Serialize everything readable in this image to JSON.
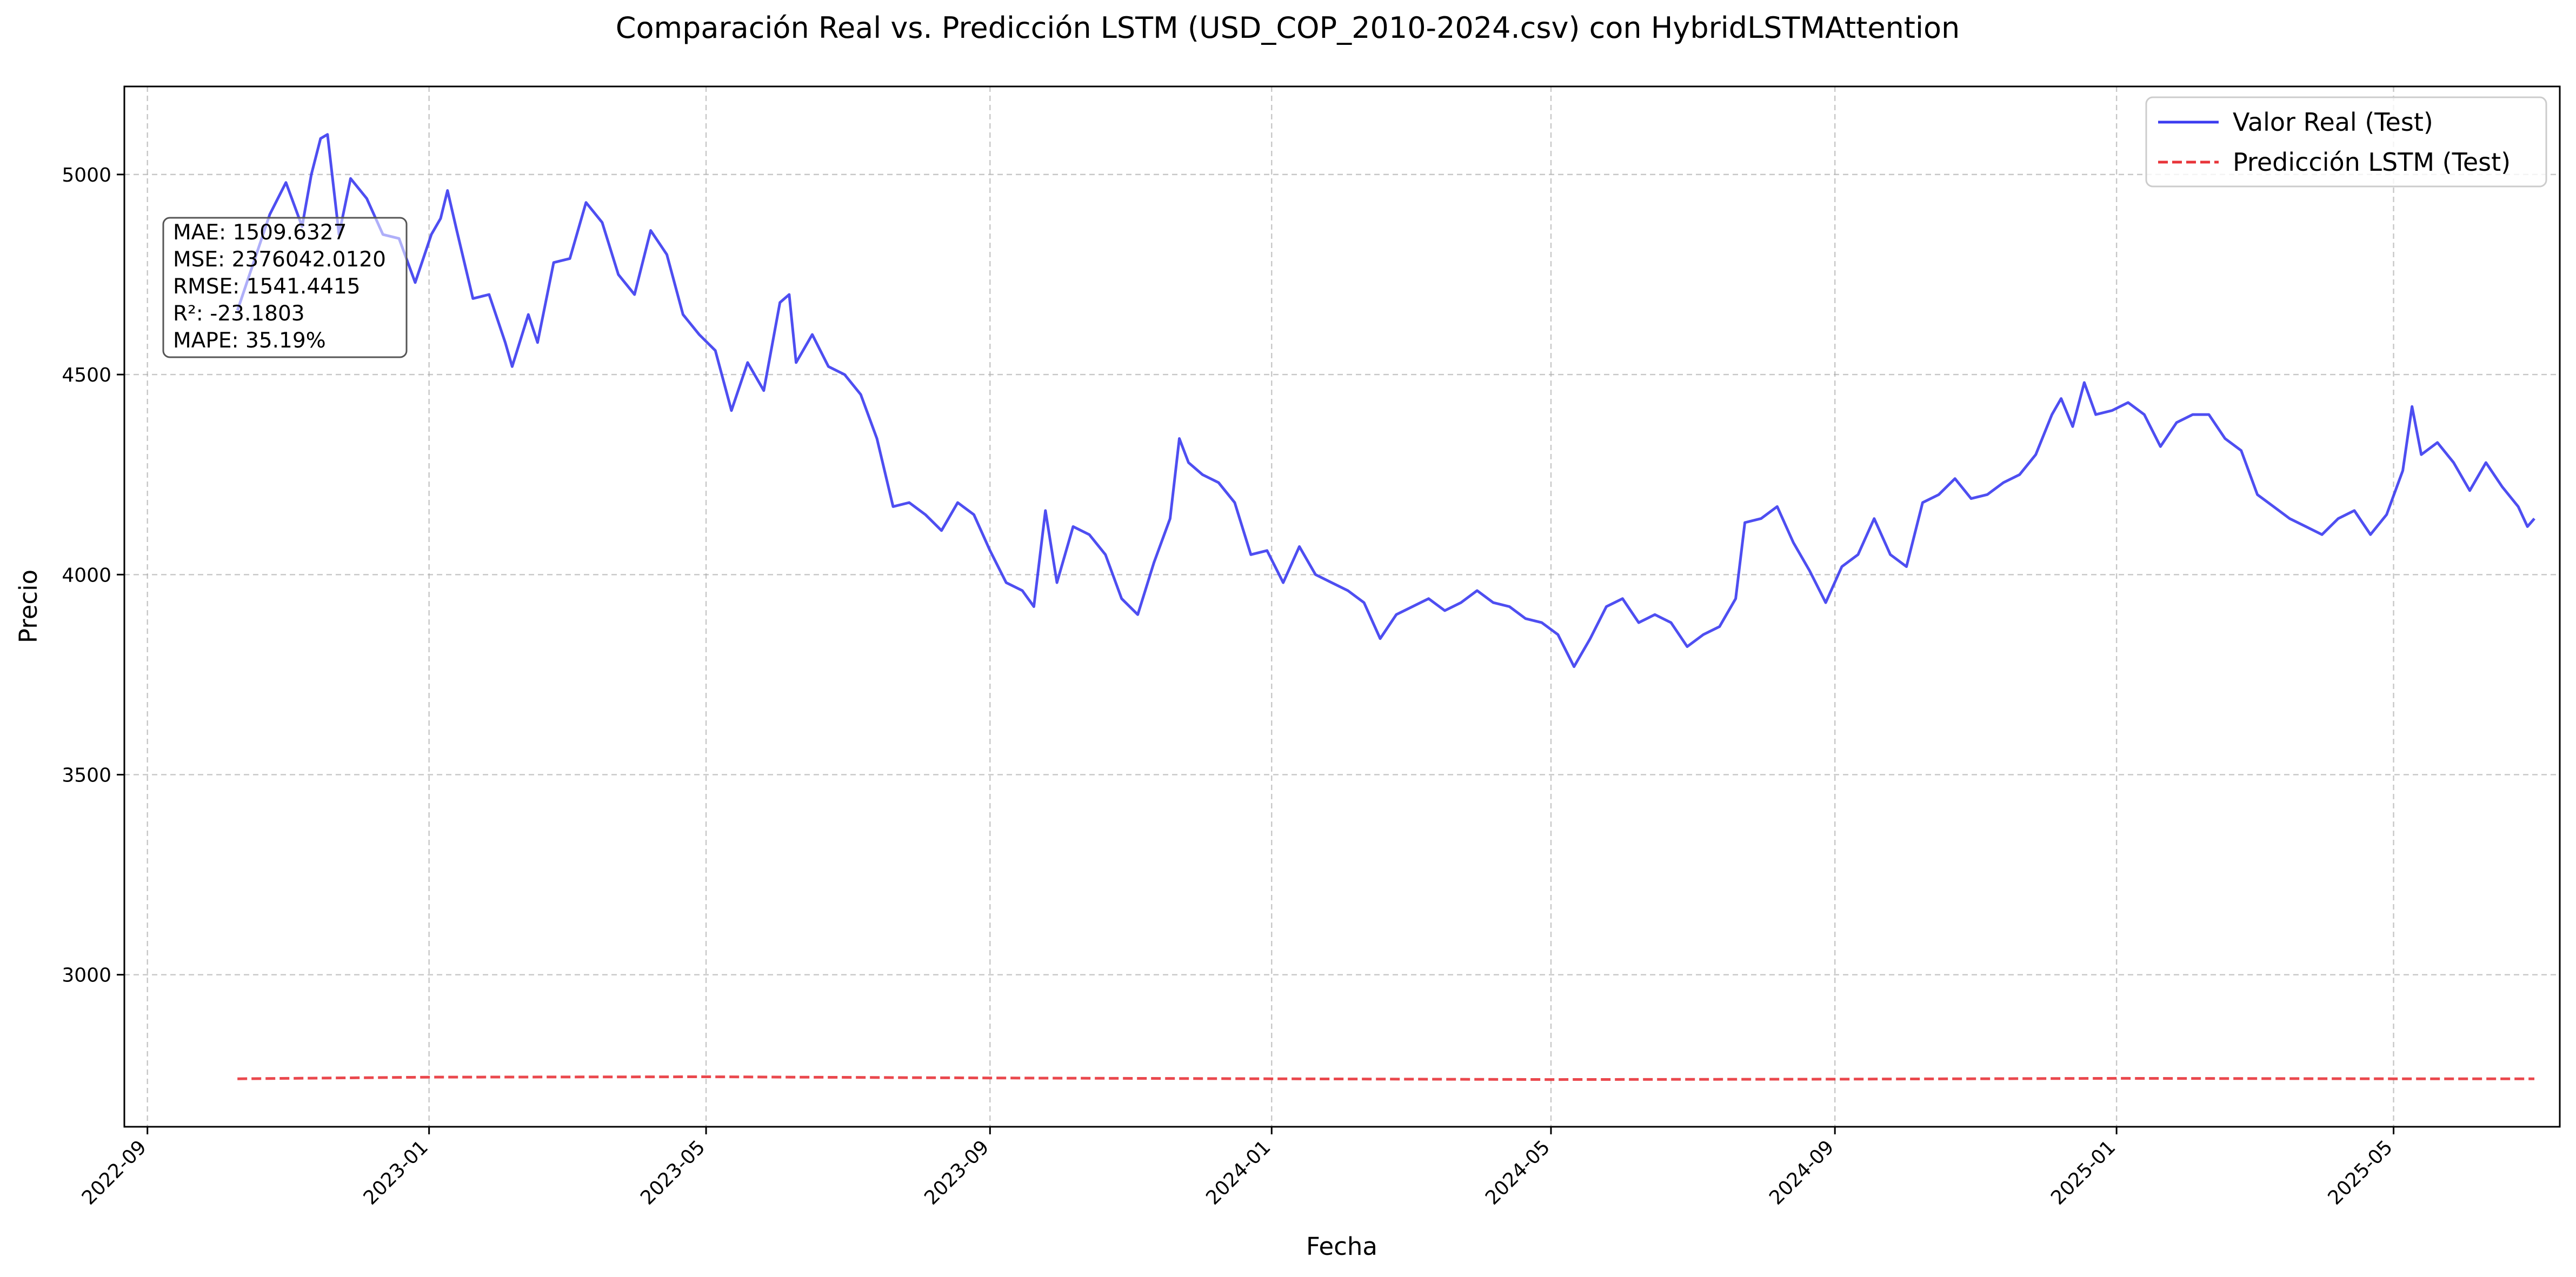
{
  "chart_data": {
    "type": "line",
    "title": "Comparación Real vs. Predicción LSTM (USD_COP_2010-2024.csv) con HybridLSTMAttention",
    "xlabel": "Fecha",
    "ylabel": "Precio",
    "x_tick_labels": [
      "2022-09",
      "2023-01",
      "2023-05",
      "2023-09",
      "2024-01",
      "2024-05",
      "2024-09",
      "2025-01",
      "2025-05"
    ],
    "y_tick_labels": [
      "3000",
      "3500",
      "4000",
      "4500",
      "5000"
    ],
    "y_ticks": [
      3000,
      3500,
      4000,
      4500,
      5000
    ],
    "ylim": [
      2620,
      5220
    ],
    "xlim": [
      "2022-08-22",
      "2025-07-12"
    ],
    "grid": true,
    "legend_position": "top-right",
    "series": [
      {
        "name": "Valor Real (Test)",
        "color": "#3b3bf0",
        "style": "solid",
        "points": [
          [
            "2022-10-10",
            4660
          ],
          [
            "2022-10-17",
            4780
          ],
          [
            "2022-10-24",
            4900
          ],
          [
            "2022-10-31",
            4980
          ],
          [
            "2022-11-07",
            4870
          ],
          [
            "2022-11-11",
            5000
          ],
          [
            "2022-11-15",
            5090
          ],
          [
            "2022-11-18",
            5100
          ],
          [
            "2022-11-23",
            4850
          ],
          [
            "2022-11-28",
            4990
          ],
          [
            "2022-12-05",
            4940
          ],
          [
            "2022-12-12",
            4850
          ],
          [
            "2022-12-19",
            4840
          ],
          [
            "2022-12-26",
            4730
          ],
          [
            "2023-01-02",
            4850
          ],
          [
            "2023-01-06",
            4890
          ],
          [
            "2023-01-09",
            4960
          ],
          [
            "2023-01-13",
            4860
          ],
          [
            "2023-01-20",
            4690
          ],
          [
            "2023-01-27",
            4700
          ],
          [
            "2023-02-03",
            4580
          ],
          [
            "2023-02-06",
            4520
          ],
          [
            "2023-02-13",
            4650
          ],
          [
            "2023-02-17",
            4580
          ],
          [
            "2023-02-24",
            4780
          ],
          [
            "2023-03-03",
            4790
          ],
          [
            "2023-03-10",
            4930
          ],
          [
            "2023-03-17",
            4880
          ],
          [
            "2023-03-24",
            4750
          ],
          [
            "2023-03-31",
            4700
          ],
          [
            "2023-04-07",
            4860
          ],
          [
            "2023-04-14",
            4800
          ],
          [
            "2023-04-21",
            4650
          ],
          [
            "2023-04-28",
            4600
          ],
          [
            "2023-05-05",
            4560
          ],
          [
            "2023-05-12",
            4410
          ],
          [
            "2023-05-19",
            4530
          ],
          [
            "2023-05-26",
            4460
          ],
          [
            "2023-06-02",
            4680
          ],
          [
            "2023-06-06",
            4700
          ],
          [
            "2023-06-09",
            4530
          ],
          [
            "2023-06-16",
            4600
          ],
          [
            "2023-06-23",
            4520
          ],
          [
            "2023-06-30",
            4500
          ],
          [
            "2023-07-07",
            4450
          ],
          [
            "2023-07-14",
            4340
          ],
          [
            "2023-07-21",
            4170
          ],
          [
            "2023-07-28",
            4180
          ],
          [
            "2023-08-04",
            4150
          ],
          [
            "2023-08-11",
            4110
          ],
          [
            "2023-08-18",
            4180
          ],
          [
            "2023-08-25",
            4150
          ],
          [
            "2023-09-01",
            4060
          ],
          [
            "2023-09-08",
            3980
          ],
          [
            "2023-09-15",
            3960
          ],
          [
            "2023-09-20",
            3920
          ],
          [
            "2023-09-25",
            4160
          ],
          [
            "2023-09-30",
            3980
          ],
          [
            "2023-10-07",
            4120
          ],
          [
            "2023-10-14",
            4100
          ],
          [
            "2023-10-21",
            4050
          ],
          [
            "2023-10-28",
            3940
          ],
          [
            "2023-11-04",
            3900
          ],
          [
            "2023-11-11",
            4030
          ],
          [
            "2023-11-18",
            4140
          ],
          [
            "2023-11-22",
            4340
          ],
          [
            "2023-11-26",
            4280
          ],
          [
            "2023-12-02",
            4250
          ],
          [
            "2023-12-09",
            4230
          ],
          [
            "2023-12-16",
            4180
          ],
          [
            "2023-12-23",
            4050
          ],
          [
            "2023-12-30",
            4060
          ],
          [
            "2024-01-06",
            3980
          ],
          [
            "2024-01-13",
            4070
          ],
          [
            "2024-01-20",
            4000
          ],
          [
            "2024-01-27",
            3980
          ],
          [
            "2024-02-03",
            3960
          ],
          [
            "2024-02-10",
            3930
          ],
          [
            "2024-02-17",
            3840
          ],
          [
            "2024-02-24",
            3900
          ],
          [
            "2024-03-02",
            3920
          ],
          [
            "2024-03-09",
            3940
          ],
          [
            "2024-03-16",
            3910
          ],
          [
            "2024-03-23",
            3930
          ],
          [
            "2024-03-30",
            3960
          ],
          [
            "2024-04-06",
            3930
          ],
          [
            "2024-04-13",
            3920
          ],
          [
            "2024-04-20",
            3890
          ],
          [
            "2024-04-27",
            3880
          ],
          [
            "2024-05-04",
            3850
          ],
          [
            "2024-05-11",
            3770
          ],
          [
            "2024-05-18",
            3840
          ],
          [
            "2024-05-25",
            3920
          ],
          [
            "2024-06-01",
            3940
          ],
          [
            "2024-06-08",
            3880
          ],
          [
            "2024-06-15",
            3900
          ],
          [
            "2024-06-22",
            3880
          ],
          [
            "2024-06-29",
            3820
          ],
          [
            "2024-07-06",
            3850
          ],
          [
            "2024-07-13",
            3870
          ],
          [
            "2024-07-20",
            3940
          ],
          [
            "2024-07-24",
            4130
          ],
          [
            "2024-07-31",
            4140
          ],
          [
            "2024-08-07",
            4170
          ],
          [
            "2024-08-14",
            4080
          ],
          [
            "2024-08-21",
            4010
          ],
          [
            "2024-08-28",
            3930
          ],
          [
            "2024-09-04",
            4020
          ],
          [
            "2024-09-11",
            4050
          ],
          [
            "2024-09-18",
            4140
          ],
          [
            "2024-09-25",
            4050
          ],
          [
            "2024-10-02",
            4020
          ],
          [
            "2024-10-09",
            4180
          ],
          [
            "2024-10-16",
            4200
          ],
          [
            "2024-10-23",
            4240
          ],
          [
            "2024-10-30",
            4190
          ],
          [
            "2024-11-06",
            4200
          ],
          [
            "2024-11-13",
            4230
          ],
          [
            "2024-11-20",
            4250
          ],
          [
            "2024-11-27",
            4300
          ],
          [
            "2024-12-04",
            4400
          ],
          [
            "2024-12-08",
            4440
          ],
          [
            "2024-12-13",
            4370
          ],
          [
            "2024-12-18",
            4480
          ],
          [
            "2024-12-23",
            4400
          ],
          [
            "2024-12-30",
            4410
          ],
          [
            "2025-01-06",
            4430
          ],
          [
            "2025-01-13",
            4400
          ],
          [
            "2025-01-20",
            4320
          ],
          [
            "2025-01-27",
            4380
          ],
          [
            "2025-02-03",
            4400
          ],
          [
            "2025-02-10",
            4400
          ],
          [
            "2025-02-17",
            4340
          ],
          [
            "2025-02-24",
            4310
          ],
          [
            "2025-03-03",
            4200
          ],
          [
            "2025-03-10",
            4170
          ],
          [
            "2025-03-17",
            4140
          ],
          [
            "2025-03-24",
            4120
          ],
          [
            "2025-03-31",
            4100
          ],
          [
            "2025-04-07",
            4140
          ],
          [
            "2025-04-14",
            4160
          ],
          [
            "2025-04-21",
            4100
          ],
          [
            "2025-04-28",
            4150
          ],
          [
            "2025-05-05",
            4260
          ],
          [
            "2025-05-09",
            4420
          ],
          [
            "2025-05-13",
            4300
          ],
          [
            "2025-05-20",
            4330
          ],
          [
            "2025-05-27",
            4280
          ],
          [
            "2025-06-03",
            4210
          ],
          [
            "2025-06-10",
            4280
          ],
          [
            "2025-06-17",
            4220
          ],
          [
            "2025-06-24",
            4170
          ],
          [
            "2025-06-28",
            4120
          ],
          [
            "2025-07-01",
            4140
          ]
        ]
      },
      {
        "name": "Predicción LSTM (Test)",
        "color": "#e8343a",
        "style": "dashed",
        "points": [
          [
            "2022-10-10",
            2740
          ],
          [
            "2023-01-01",
            2744
          ],
          [
            "2023-05-01",
            2745
          ],
          [
            "2023-09-01",
            2742
          ],
          [
            "2024-01-01",
            2740
          ],
          [
            "2024-05-01",
            2738
          ],
          [
            "2024-09-01",
            2739
          ],
          [
            "2025-01-01",
            2741
          ],
          [
            "2025-05-01",
            2740
          ],
          [
            "2025-07-01",
            2740
          ]
        ]
      }
    ]
  },
  "metrics": {
    "mae": "MAE: 1509.6327",
    "mse": "MSE: 2376042.0120",
    "rmse": "RMSE: 1541.4415",
    "r2": "R²: -23.1803",
    "mape": "MAPE: 35.19%"
  },
  "colors": {
    "real": "#3b3bf0",
    "prediction": "#e8343a"
  }
}
